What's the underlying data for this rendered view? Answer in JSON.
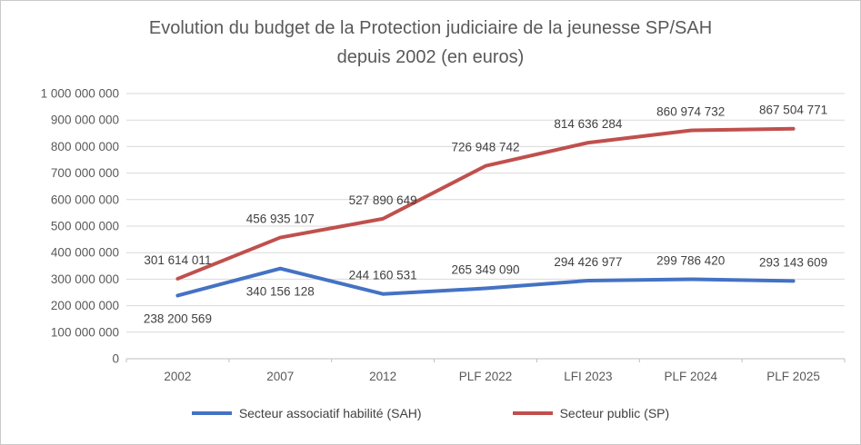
{
  "chart_data": {
    "type": "line",
    "title": "Evolution du budget de la Protection judiciaire de la jeunesse SP/SAH",
    "subtitle": "depuis 2002 (en euros)",
    "categories": [
      "2002",
      "2007",
      "2012",
      "PLF 2022",
      "LFI 2023",
      "PLF 2024",
      "PLF 2025"
    ],
    "series": [
      {
        "name": "Secteur associatif habilité (SAH)",
        "color": "#4472C4",
        "values": [
          238200569,
          340156128,
          244160531,
          265349090,
          294426977,
          299786420,
          293143609
        ],
        "label_side": [
          "below",
          "below",
          "above",
          "above",
          "above",
          "above",
          "above"
        ]
      },
      {
        "name": "Secteur public (SP)",
        "color": "#C0504D",
        "values": [
          301614011,
          456935107,
          527890649,
          726948742,
          814636284,
          860974732,
          867504771
        ],
        "label_side": [
          "above",
          "above",
          "above",
          "above",
          "above",
          "above",
          "above"
        ]
      }
    ],
    "ylim": [
      0,
      1000000000
    ],
    "ytick_step": 100000000,
    "grid": "horizontal",
    "legend_position": "bottom",
    "number_format": "space-separated"
  }
}
